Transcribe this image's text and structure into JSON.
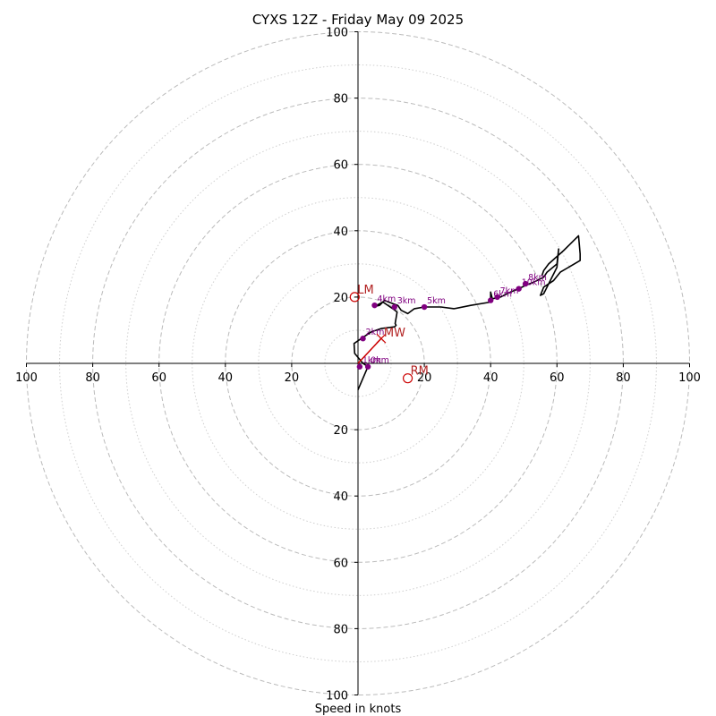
{
  "chart_data": {
    "type": "hodograph",
    "title": "CYXS 12Z - Friday May 09 2025",
    "xlabel": "Speed in knots",
    "ylabel": "",
    "range": [
      -100,
      100
    ],
    "grid": {
      "rings_dashed": [
        20,
        40,
        60,
        80,
        100
      ],
      "rings_dotted": [
        10,
        30,
        50,
        70,
        90
      ]
    },
    "tick_labels": {
      "x_left": [
        "100",
        "80",
        "60",
        "40",
        "20"
      ],
      "x_right": [
        "20",
        "40",
        "60",
        "80",
        "100"
      ],
      "y_top": [
        "100",
        "80",
        "60",
        "40",
        "20"
      ],
      "y_bottom": [
        "20",
        "40",
        "60",
        "80",
        "100"
      ]
    },
    "hodograph_line": [
      [
        0,
        -8
      ],
      [
        3,
        -1
      ],
      [
        1.5,
        0
      ],
      [
        -1,
        3
      ],
      [
        -1.2,
        6
      ],
      [
        1,
        7.5
      ],
      [
        4,
        9.5
      ],
      [
        7,
        10.5
      ],
      [
        11,
        11
      ],
      [
        11.5,
        11.5
      ],
      [
        11.2,
        12
      ],
      [
        11.8,
        15.5
      ],
      [
        10.5,
        16.5
      ],
      [
        7.5,
        18.5
      ],
      [
        5,
        17.2
      ],
      [
        6.5,
        17.5
      ],
      [
        8,
        19
      ],
      [
        10.5,
        18
      ],
      [
        12,
        17.5
      ],
      [
        13,
        16
      ],
      [
        15,
        15
      ],
      [
        17,
        16.5
      ],
      [
        20,
        17
      ],
      [
        25,
        17
      ],
      [
        29,
        16.5
      ],
      [
        34,
        17.5
      ],
      [
        40,
        18.5
      ],
      [
        40,
        21.5
      ],
      [
        40.5,
        19.5
      ],
      [
        43,
        20
      ],
      [
        46,
        21.5
      ],
      [
        48.5,
        22.5
      ],
      [
        50.5,
        23.5
      ],
      [
        53,
        24.5
      ],
      [
        56,
        26
      ],
      [
        57,
        27.5
      ],
      [
        60,
        30
      ],
      [
        60.5,
        34.5
      ],
      [
        60,
        29
      ],
      [
        58,
        25
      ],
      [
        56,
        21
      ],
      [
        55,
        20.5
      ],
      [
        56,
        23
      ],
      [
        59,
        25
      ],
      [
        61,
        27.5
      ],
      [
        67,
        31
      ],
      [
        67,
        33
      ],
      [
        66.5,
        38.5
      ],
      [
        62,
        34
      ],
      [
        57.5,
        30
      ],
      [
        56,
        28
      ],
      [
        55.5,
        26.5
      ]
    ],
    "height_markers": [
      {
        "label": "0km",
        "u": 3,
        "v": -1
      },
      {
        "label": "1km",
        "u": 0.5,
        "v": -1
      },
      {
        "label": "2km",
        "u": 1.5,
        "v": 7.5
      },
      {
        "label": "3km",
        "u": 11,
        "v": 17
      },
      {
        "label": "4km",
        "u": 5,
        "v": 17.5
      },
      {
        "label": "5km",
        "u": 20,
        "v": 17
      },
      {
        "label": "6km",
        "u": 40,
        "v": 19
      },
      {
        "label": "7km",
        "u": 42,
        "v": 20
      },
      {
        "label": "8km",
        "u": 50.5,
        "v": 24
      },
      {
        "label": "10km",
        "u": 48.5,
        "v": 22.5
      }
    ],
    "storm_motion": {
      "LM": {
        "label": "LM",
        "u": -1,
        "v": 20
      },
      "RM": {
        "label": "RM",
        "u": 15,
        "v": -4.5
      },
      "MW": {
        "label": "MW",
        "u": 7,
        "v": 7.5
      }
    },
    "colors": {
      "hodograph": "#000000",
      "markers": "#800080",
      "storm_motion": "#cc0000",
      "grid": "#bbbbbb"
    }
  }
}
